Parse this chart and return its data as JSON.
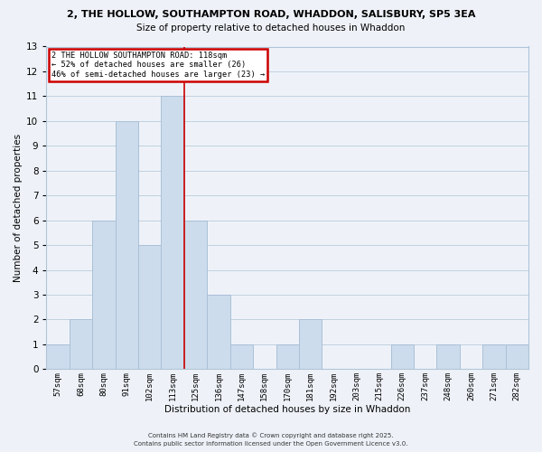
{
  "title_line1": "2, THE HOLLOW, SOUTHAMPTON ROAD, WHADDON, SALISBURY, SP5 3EA",
  "title_line2": "Size of property relative to detached houses in Whaddon",
  "xlabel": "Distribution of detached houses by size in Whaddon",
  "ylabel": "Number of detached properties",
  "bin_labels": [
    "57sqm",
    "68sqm",
    "80sqm",
    "91sqm",
    "102sqm",
    "113sqm",
    "125sqm",
    "136sqm",
    "147sqm",
    "158sqm",
    "170sqm",
    "181sqm",
    "192sqm",
    "203sqm",
    "215sqm",
    "226sqm",
    "237sqm",
    "248sqm",
    "260sqm",
    "271sqm",
    "282sqm"
  ],
  "bar_heights": [
    1,
    2,
    6,
    10,
    5,
    11,
    6,
    3,
    1,
    0,
    1,
    2,
    0,
    0,
    0,
    1,
    0,
    1,
    0,
    1,
    1
  ],
  "bar_color": "#ccdcec",
  "bar_edgecolor": "#aac0d8",
  "vline_index": 5.5,
  "annotation_title": "2 THE HOLLOW SOUTHAMPTON ROAD: 118sqm",
  "annotation_line1": "← 52% of detached houses are smaller (26)",
  "annotation_line2": "46% of semi-detached houses are larger (23) →",
  "annotation_box_facecolor": "#ffffff",
  "annotation_box_edgecolor": "#cc0000",
  "vline_color": "#cc0000",
  "ylim": [
    0,
    13
  ],
  "yticks": [
    0,
    1,
    2,
    3,
    4,
    5,
    6,
    7,
    8,
    9,
    10,
    11,
    12,
    13
  ],
  "grid_color": "#c0d0e0",
  "background_color": "#eef2f8",
  "title_fontsize": 8,
  "subtitle_fontsize": 7.5,
  "footer_line1": "Contains HM Land Registry data © Crown copyright and database right 2025.",
  "footer_line2": "Contains public sector information licensed under the Open Government Licence v3.0."
}
